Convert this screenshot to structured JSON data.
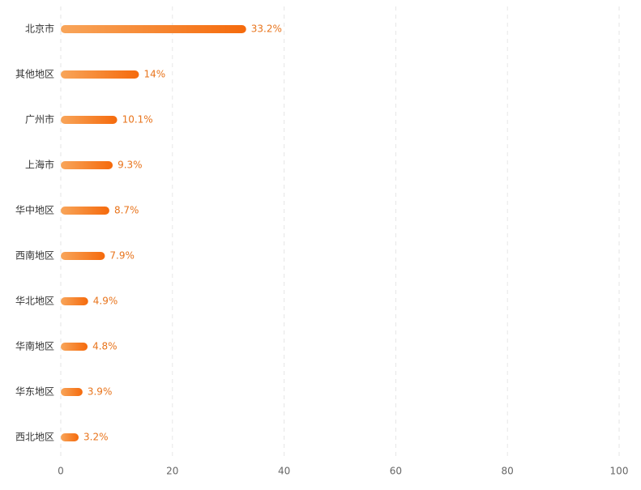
{
  "chart_data": {
    "type": "hbar",
    "categories": [
      "北京市",
      "其他地区",
      "广州市",
      "上海市",
      "华中地区",
      "西南地区",
      "华北地区",
      "华南地区",
      "华东地区",
      "西北地区"
    ],
    "values": [
      33.2,
      14,
      10.1,
      9.3,
      8.7,
      7.9,
      4.9,
      4.8,
      3.9,
      3.2
    ],
    "value_labels": [
      "33.2%",
      "14%",
      "10.1%",
      "9.3%",
      "8.7%",
      "7.9%",
      "4.9%",
      "4.8%",
      "3.9%",
      "3.2%"
    ],
    "gradient_colors": [
      "#f8a55a",
      "#f56a0c"
    ],
    "label_color": "#e8741c",
    "xlim": [
      0,
      100
    ],
    "xticks": [
      0,
      20,
      40,
      60,
      80,
      100
    ],
    "grid": true
  }
}
